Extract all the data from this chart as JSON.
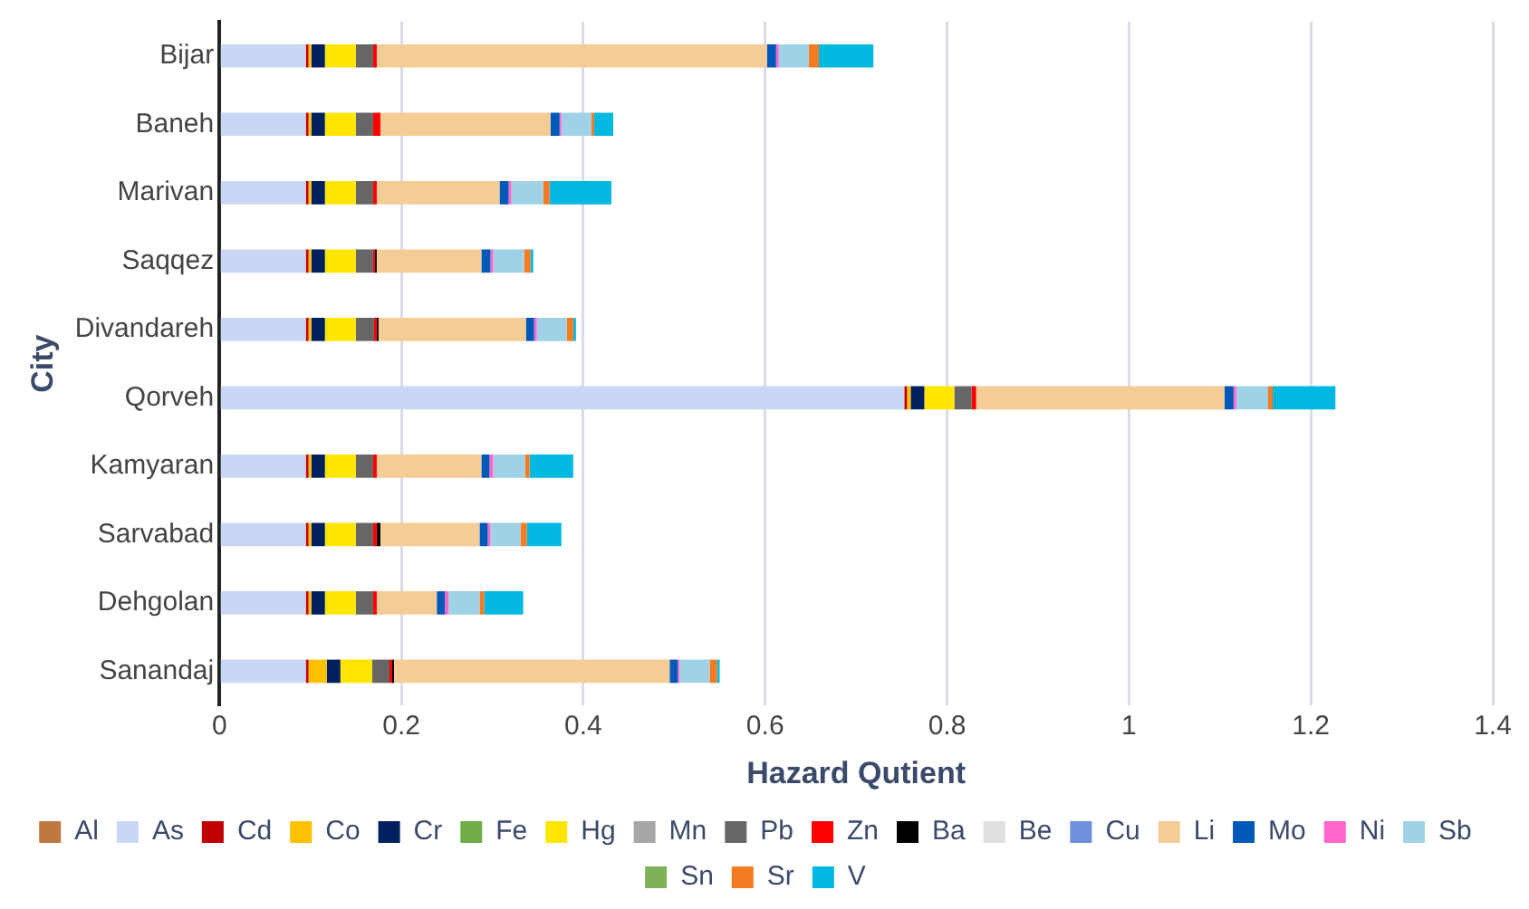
{
  "chart_data": {
    "type": "bar",
    "orientation": "horizontal",
    "stacked": true,
    "xlabel": "Hazard Qutient",
    "ylabel": "City",
    "categories": [
      "Bijar",
      "Baneh",
      "Marivan",
      "Saqqez",
      "Divandareh",
      "Qorveh",
      "Kamyaran",
      "Sarvabad",
      "Dehgolan",
      "Sanandaj"
    ],
    "xlim": [
      0,
      1.4
    ],
    "xticks": [
      0,
      0.2,
      0.4,
      0.6,
      0.8,
      1,
      1.2,
      1.4
    ],
    "grid": "x",
    "legend": "bottom",
    "series": [
      {
        "name": "Al",
        "color": "#c07840",
        "values": [
          0,
          0,
          0,
          0,
          0,
          0,
          0,
          0,
          0,
          0
        ]
      },
      {
        "name": "As",
        "color": "#c9d7f5",
        "values": [
          0.095,
          0.095,
          0.095,
          0.095,
          0.095,
          0.753,
          0.095,
          0.095,
          0.095,
          0.095
        ]
      },
      {
        "name": "Cd",
        "color": "#c00000",
        "values": [
          0.003,
          0.003,
          0.003,
          0.003,
          0.003,
          0.003,
          0.003,
          0.003,
          0.003,
          0.003
        ]
      },
      {
        "name": "Co",
        "color": "#ffc000",
        "values": [
          0.003,
          0.003,
          0.003,
          0.003,
          0.003,
          0.004,
          0.003,
          0.003,
          0.003,
          0.02
        ]
      },
      {
        "name": "Cr",
        "color": "#002060",
        "values": [
          0.015,
          0.015,
          0.015,
          0.015,
          0.015,
          0.015,
          0.015,
          0.015,
          0.015,
          0.015
        ]
      },
      {
        "name": "Fe",
        "color": "#70ad47",
        "values": [
          0,
          0,
          0,
          0,
          0,
          0,
          0,
          0,
          0,
          0
        ]
      },
      {
        "name": "Hg",
        "color": "#ffe600",
        "values": [
          0.034,
          0.034,
          0.034,
          0.034,
          0.034,
          0.033,
          0.034,
          0.034,
          0.034,
          0.035
        ]
      },
      {
        "name": "Mn",
        "color": "#a6a6a6",
        "values": [
          0,
          0,
          0,
          0,
          0,
          0,
          0,
          0,
          0,
          0
        ]
      },
      {
        "name": "Pb",
        "color": "#666666",
        "values": [
          0.019,
          0.019,
          0.019,
          0.019,
          0.02,
          0.019,
          0.019,
          0.019,
          0.019,
          0.019
        ]
      },
      {
        "name": "Zn",
        "color": "#ff0000",
        "values": [
          0.004,
          0.008,
          0.004,
          0.002,
          0.003,
          0.005,
          0.004,
          0.004,
          0.004,
          0.003
        ]
      },
      {
        "name": "Ba",
        "color": "#000000",
        "values": [
          0,
          0,
          0,
          0.002,
          0.002,
          0,
          0,
          0.004,
          0,
          0.002
        ]
      },
      {
        "name": "Be",
        "color": "#e0e0e0",
        "values": [
          0,
          0,
          0,
          0,
          0,
          0,
          0,
          0,
          0,
          0
        ]
      },
      {
        "name": "Cu",
        "color": "#6f8fdc",
        "values": [
          0,
          0,
          0,
          0,
          0,
          0,
          0,
          0,
          0,
          0
        ]
      },
      {
        "name": "Li",
        "color": "#f4cc95",
        "values": [
          0.429,
          0.187,
          0.135,
          0.115,
          0.162,
          0.273,
          0.115,
          0.109,
          0.066,
          0.303
        ]
      },
      {
        "name": "Mo",
        "color": "#0058b8",
        "values": [
          0.01,
          0.01,
          0.01,
          0.01,
          0.009,
          0.01,
          0.009,
          0.009,
          0.009,
          0.009
        ]
      },
      {
        "name": "Ni",
        "color": "#ff66cc",
        "values": [
          0.003,
          0.002,
          0.003,
          0.003,
          0.003,
          0.003,
          0.004,
          0.003,
          0.004,
          0.002
        ]
      },
      {
        "name": "Sb",
        "color": "#9fd2e6",
        "values": [
          0.033,
          0.033,
          0.035,
          0.034,
          0.033,
          0.035,
          0.035,
          0.033,
          0.034,
          0.033
        ]
      },
      {
        "name": "Sn",
        "color": "#7fb15a",
        "values": [
          0,
          0,
          0,
          0,
          0,
          0,
          0,
          0,
          0,
          0
        ]
      },
      {
        "name": "Sr",
        "color": "#f47b20",
        "values": [
          0.011,
          0.003,
          0.007,
          0.007,
          0.007,
          0.005,
          0.005,
          0.007,
          0.005,
          0.008
        ]
      },
      {
        "name": "V",
        "color": "#00b8e0",
        "values": [
          0.06,
          0.021,
          0.068,
          0.003,
          0.003,
          0.069,
          0.048,
          0.038,
          0.043,
          0.003
        ]
      }
    ]
  }
}
